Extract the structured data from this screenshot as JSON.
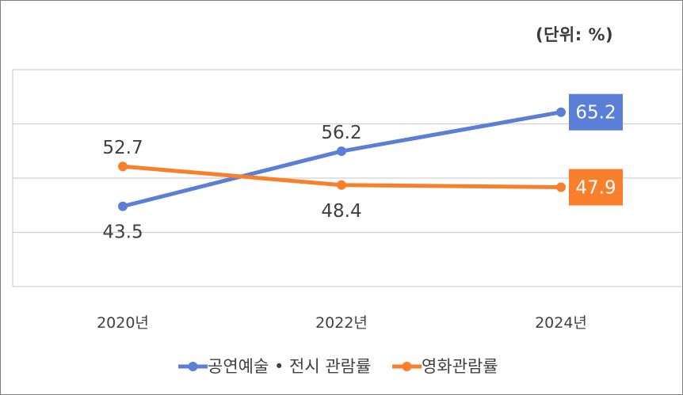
{
  "unit_label": "(단위: %)",
  "colors": {
    "series_a": "#5b7fd6",
    "series_b": "#fa7f2d",
    "grid": "#d0d0d0",
    "text": "#404040"
  },
  "chart_data": {
    "type": "line",
    "title": "",
    "xlabel": "",
    "ylabel": "",
    "categories": [
      "2020년",
      "2022년",
      "2024년"
    ],
    "series": [
      {
        "name": "공연예술 • 전시 관람률",
        "values": [
          43.5,
          56.2,
          65.2
        ],
        "color": "#5b7fd6"
      },
      {
        "name": "영화관람률",
        "values": [
          52.7,
          48.4,
          47.9
        ],
        "color": "#fa7f2d"
      }
    ],
    "ylim": [
      25,
      75
    ],
    "grid": true,
    "legend": "bottom"
  }
}
